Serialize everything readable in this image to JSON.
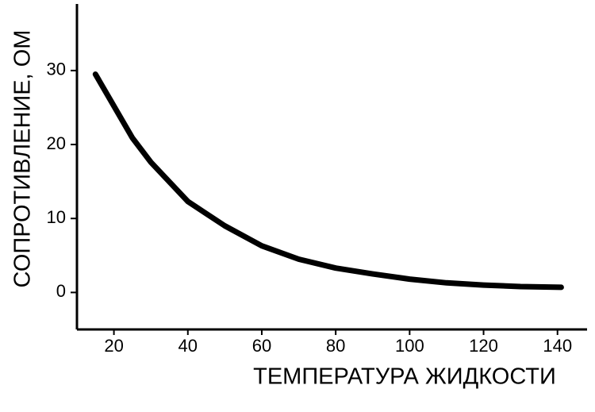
{
  "chart_data": {
    "type": "line",
    "xlabel": "ТЕМПЕРАТУРА ЖИДКОСТИ",
    "ylabel": "СОПРОТИВЛЕНИЕ, ОМ",
    "x": [
      15,
      20,
      25,
      30,
      40,
      50,
      60,
      70,
      80,
      90,
      100,
      110,
      120,
      130,
      141
    ],
    "series": [
      {
        "color": "#000000",
        "values": [
          29.5,
          25.2,
          20.9,
          17.6,
          12.3,
          9.0,
          6.3,
          4.5,
          3.3,
          2.5,
          1.8,
          1.3,
          1.0,
          0.8,
          0.7
        ]
      }
    ],
    "xlim": [
      10,
      148
    ],
    "xticks": [
      20,
      40,
      60,
      80,
      100,
      120,
      140
    ],
    "ylim": [
      -5,
      39
    ],
    "yticks": [
      0,
      10,
      20,
      30
    ],
    "grid": false
  }
}
